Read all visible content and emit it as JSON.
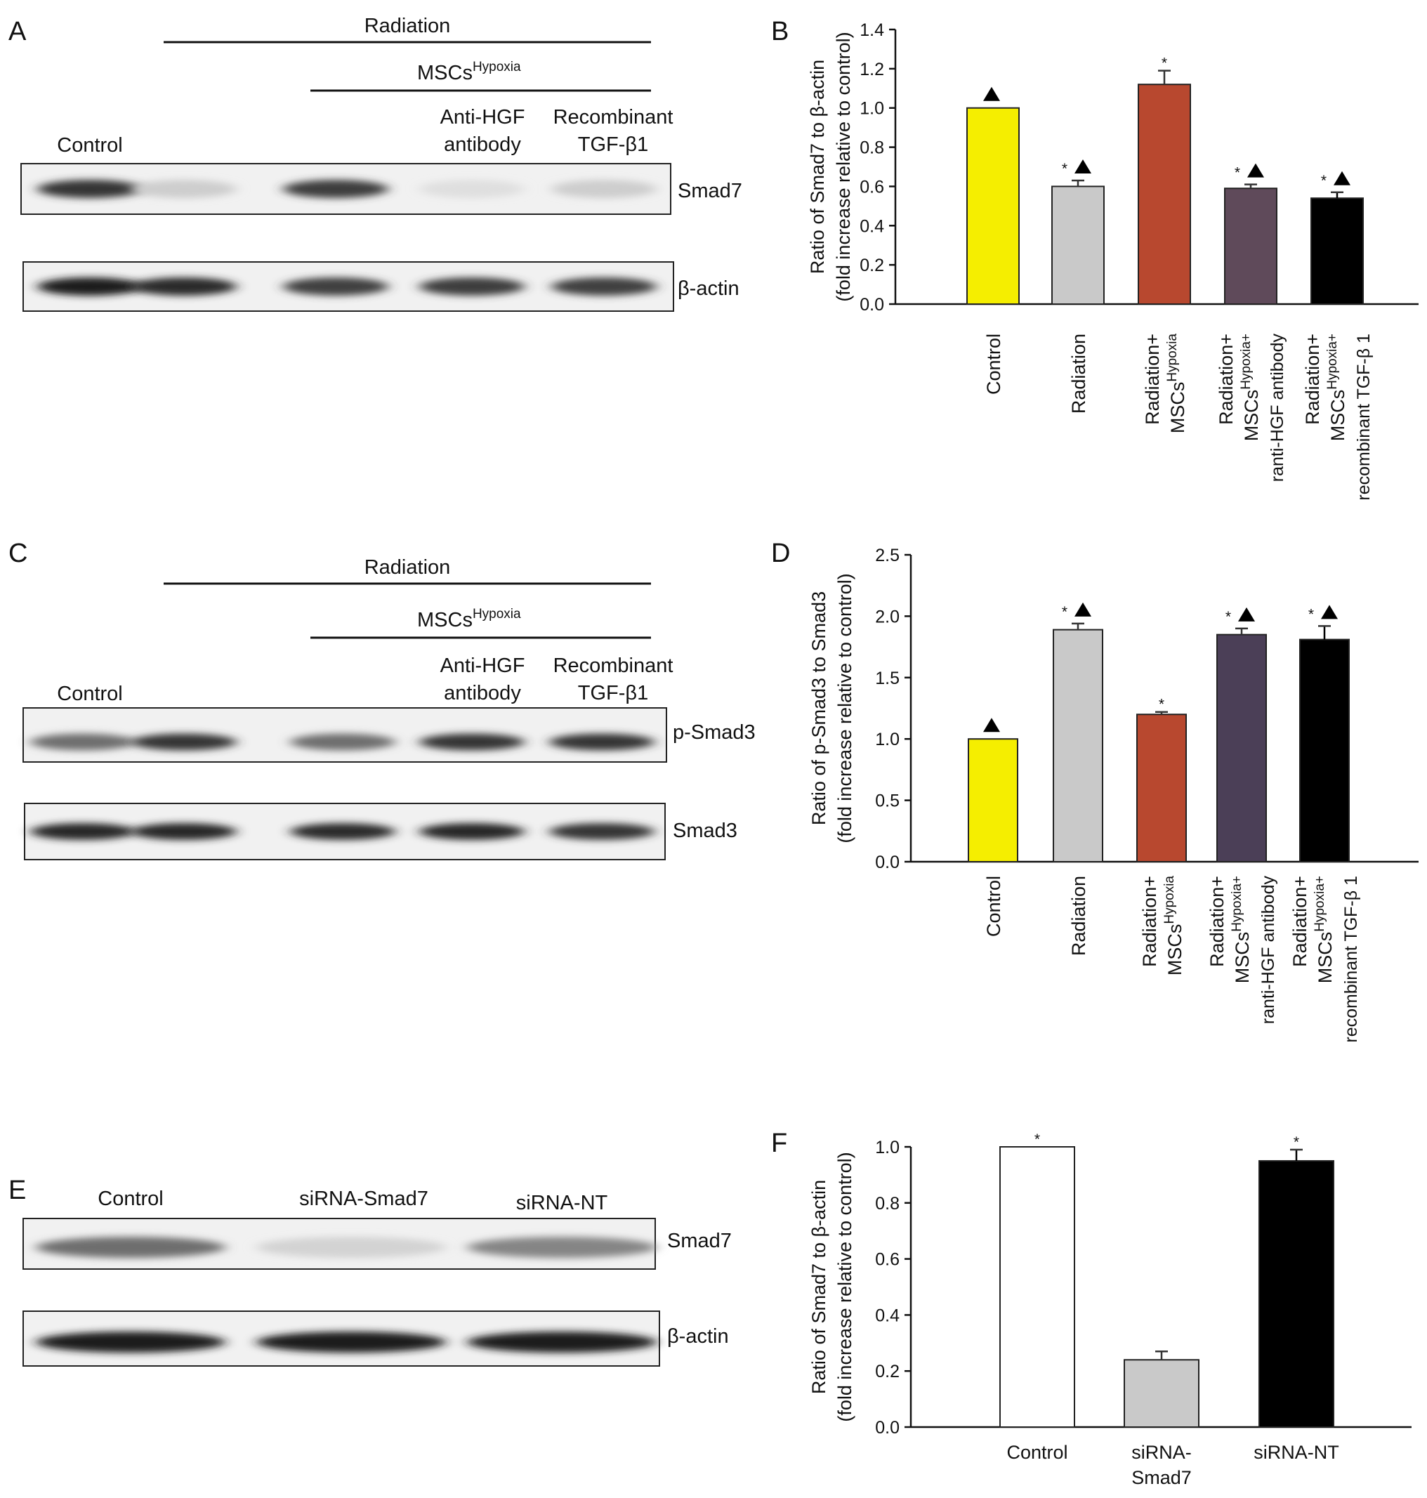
{
  "panels": {
    "A": {
      "letter": "A",
      "header_radiation": "Radiation",
      "header_mscs": "MSCs",
      "header_mscs_sup": "Hypoxia",
      "lanes": [
        "Control",
        "",
        "",
        "Anti-HGF antibody",
        "Recombinant TGF-β1"
      ],
      "lane_lines": {
        "antihgf": [
          "Anti-HGF",
          "antibody"
        ],
        "recomb": [
          "Recombinant",
          "TGF-β1"
        ]
      },
      "blots": [
        {
          "label": "Smad7",
          "intensity": [
            0.85,
            0.18,
            0.82,
            0.1,
            0.18
          ]
        },
        {
          "label": "β-actin",
          "intensity": [
            0.95,
            0.9,
            0.8,
            0.82,
            0.8
          ]
        }
      ]
    },
    "C": {
      "letter": "C",
      "header_radiation": "Radiation",
      "header_mscs": "MSCs",
      "header_mscs_sup": "Hypoxia",
      "lane_lines": {
        "control": "Control",
        "antihgf": [
          "Anti-HGF",
          "antibody"
        ],
        "recomb": [
          "Recombinant",
          "TGF-β1"
        ]
      },
      "blots": [
        {
          "label": "p-Smad3",
          "intensity": [
            0.6,
            0.85,
            0.6,
            0.85,
            0.85
          ]
        },
        {
          "label": "Smad3",
          "intensity": [
            0.92,
            0.92,
            0.9,
            0.92,
            0.85
          ]
        }
      ]
    },
    "E": {
      "letter": "E",
      "lanes": [
        "Control",
        "siRNA-Smad7",
        "siRNA-NT"
      ],
      "blots": [
        {
          "label": "Smad7",
          "intensity": [
            0.6,
            0.15,
            0.5
          ]
        },
        {
          "label": "β-actin",
          "intensity": [
            0.95,
            0.95,
            0.95
          ]
        }
      ]
    }
  },
  "chart_data": [
    {
      "panel": "B",
      "type": "bar",
      "ylabel": "Ratio of Smad7 to β-actin",
      "ylabel2": "(fold increase relative to control)",
      "ylim": [
        0,
        1.4
      ],
      "yticks": [
        "0.0",
        "0.2",
        "0.4",
        "0.6",
        "0.8",
        "1.0",
        "1.2",
        "1.4"
      ],
      "categories": [
        [
          "Control"
        ],
        [
          "Radiation"
        ],
        [
          "Radiation+",
          "MSCs",
          "Hypoxia"
        ],
        [
          "Radiation+",
          "MSCs",
          "Hypoxia+",
          "ranti-HGF antibody"
        ],
        [
          "Radiation+",
          "MSCs",
          "Hypoxia+",
          "recombinant TGF-β 1"
        ]
      ],
      "values": [
        1.0,
        0.6,
        1.12,
        0.59,
        0.54
      ],
      "errors": [
        0.0,
        0.03,
        0.07,
        0.02,
        0.03
      ],
      "colors": [
        "#f5ee00",
        "#c9c9c9",
        "#b8482f",
        "#5f4a5a",
        "#000000"
      ],
      "star": [
        false,
        true,
        true,
        true,
        true
      ],
      "triangle": [
        true,
        true,
        false,
        true,
        true
      ],
      "star_symbol": "*",
      "triangle_symbol": "▲"
    },
    {
      "panel": "D",
      "type": "bar",
      "ylabel": "Ratio of p-Smad3 to Smad3",
      "ylabel2": "(fold increase relative to control)",
      "ylim": [
        0,
        2.5
      ],
      "yticks": [
        "0.0",
        "0.5",
        "1.0",
        "1.5",
        "2.0",
        "2.5"
      ],
      "categories": [
        [
          "Control"
        ],
        [
          "Radiation"
        ],
        [
          "Radiation+",
          "MSCs",
          "Hypoxia"
        ],
        [
          "Radiation+",
          "MSCs",
          "Hypoxia+",
          "ranti-HGF antibody"
        ],
        [
          "Radiation+",
          "MSCs",
          "Hypoxia+",
          "recombinant TGF-β 1"
        ]
      ],
      "values": [
        1.0,
        1.89,
        1.2,
        1.85,
        1.81
      ],
      "errors": [
        0.0,
        0.05,
        0.02,
        0.05,
        0.11
      ],
      "colors": [
        "#f5ee00",
        "#c9c9c9",
        "#b8482f",
        "#4b3f57",
        "#000000"
      ],
      "star": [
        false,
        true,
        true,
        true,
        true
      ],
      "triangle": [
        true,
        true,
        false,
        true,
        true
      ],
      "star_symbol": "*",
      "triangle_symbol": "▲"
    },
    {
      "panel": "F",
      "type": "bar",
      "ylabel": "Ratio of Smad7 to β-actin",
      "ylabel2": "(fold increase relative to control)",
      "ylim": [
        0,
        1.0
      ],
      "yticks": [
        "0.0",
        "0.2",
        "0.4",
        "0.6",
        "0.8",
        "1.0"
      ],
      "categories": [
        [
          "Control"
        ],
        [
          "siRNA-",
          "Smad7"
        ],
        [
          "siRNA-NT"
        ]
      ],
      "values": [
        1.0,
        0.24,
        0.95
      ],
      "errors": [
        0.0,
        0.03,
        0.04
      ],
      "colors": [
        "#ffffff",
        "#c9c9c9",
        "#000000"
      ],
      "star": [
        true,
        false,
        true
      ],
      "triangle": [
        false,
        false,
        false
      ],
      "star_symbol": "*",
      "triangle_symbol": "▲"
    }
  ]
}
